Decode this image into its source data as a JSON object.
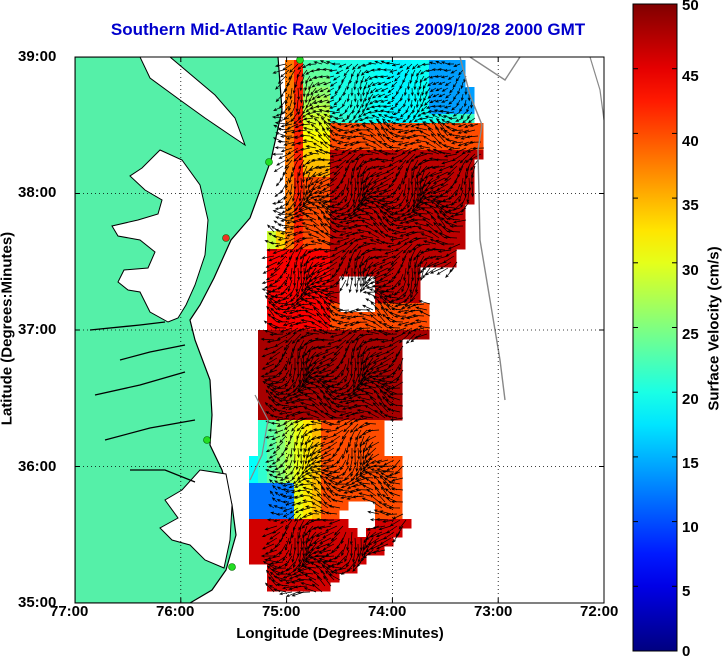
{
  "title": "Southern Mid-Atlantic Raw Velocities 2009/10/28 2000 GMT",
  "map": {
    "xlabel": "Longitude (Degrees:Minutes)",
    "ylabel": "Latitude (Degrees:Minutes)",
    "lon_range": [
      -77,
      -72
    ],
    "lat_range": [
      35,
      39
    ],
    "x_ticks": [
      "77:00",
      "76:00",
      "75:00",
      "74:00",
      "73:00",
      "72:00"
    ],
    "y_ticks": [
      "35:00",
      "36:00",
      "37:00",
      "38:00",
      "39:00"
    ],
    "grid": "dotted",
    "land_color": "#55f0a8",
    "coast_color": "#000000",
    "arrow_color": "#000000",
    "station_color": "#22dd22"
  },
  "colorbar": {
    "label": "Surface Velocity (cm/s)",
    "min": 0,
    "max": 50,
    "ticks": [
      "0",
      "5",
      "10",
      "15",
      "20",
      "25",
      "30",
      "35",
      "40",
      "45",
      "50"
    ],
    "colormap": "jet"
  }
}
